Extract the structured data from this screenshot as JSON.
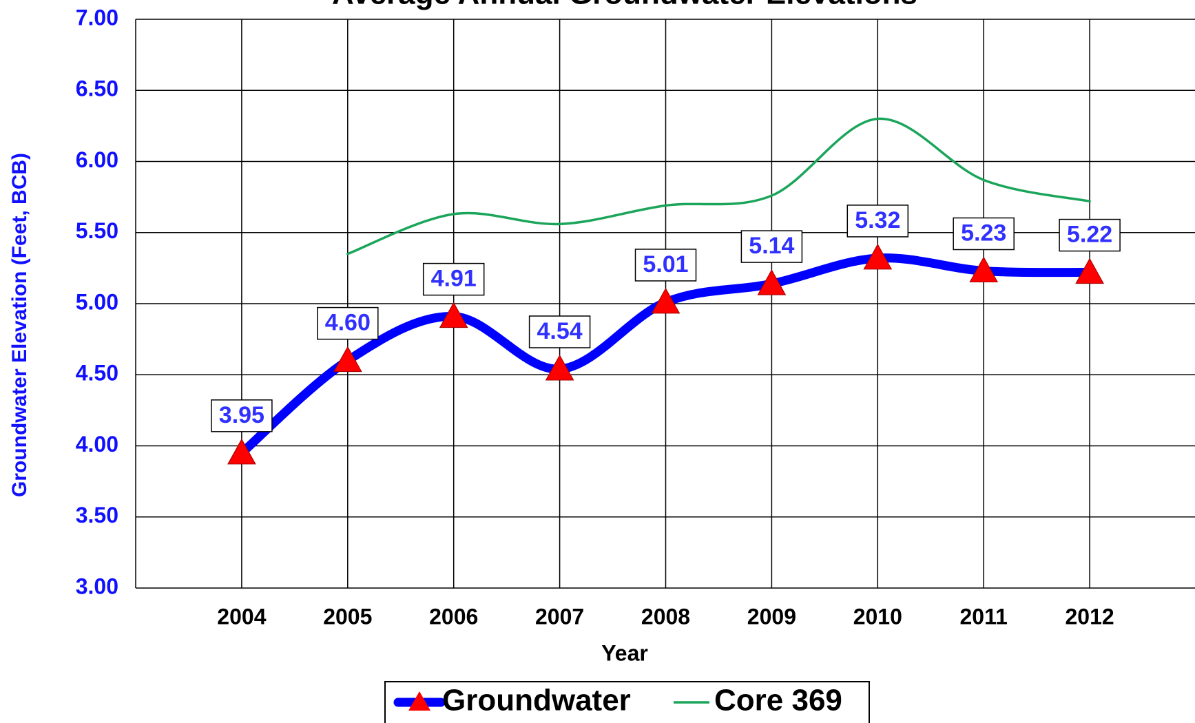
{
  "chart_data": {
    "type": "line",
    "title": "Average Annual Groundwater Elevations",
    "xlabel": "Year",
    "ylabel": "Groundwater Elevation  (Feet, BCB)",
    "x": [
      2004,
      2005,
      2006,
      2007,
      2008,
      2009,
      2010,
      2011,
      2012
    ],
    "xlim": [
      2003,
      2013
    ],
    "xticks": [
      2004,
      2005,
      2006,
      2007,
      2008,
      2009,
      2010,
      2011,
      2012
    ],
    "ylim": [
      3,
      7
    ],
    "yticks": [
      {
        "value": 3,
        "label": "3.00"
      },
      {
        "value": 3.5,
        "label": "3.50"
      },
      {
        "value": 4,
        "label": "4.00"
      },
      {
        "value": 4.5,
        "label": "4.50"
      },
      {
        "value": 5,
        "label": "5.00"
      },
      {
        "value": 5.5,
        "label": "5.50"
      },
      {
        "value": 6,
        "label": "6.00"
      },
      {
        "value": 6.5,
        "label": "6.50"
      },
      {
        "value": 7,
        "label": "7.00"
      }
    ],
    "grid": true,
    "legend": "bottom",
    "series": [
      {
        "name": "Groundwater",
        "color": "#0000ff",
        "marker_color": "#ff0000",
        "values": [
          3.95,
          4.6,
          4.91,
          4.54,
          5.01,
          5.14,
          5.32,
          5.23,
          5.22
        ],
        "value_labels": [
          "3.95",
          "4.60",
          "4.91",
          "4.54",
          "5.01",
          "5.14",
          "5.32",
          "5.23",
          "5.22"
        ]
      },
      {
        "name": "Core 369",
        "color": "#1aa55a",
        "values": [
          null,
          5.35,
          5.63,
          5.56,
          5.69,
          5.76,
          6.3,
          5.87,
          5.72
        ]
      }
    ]
  }
}
